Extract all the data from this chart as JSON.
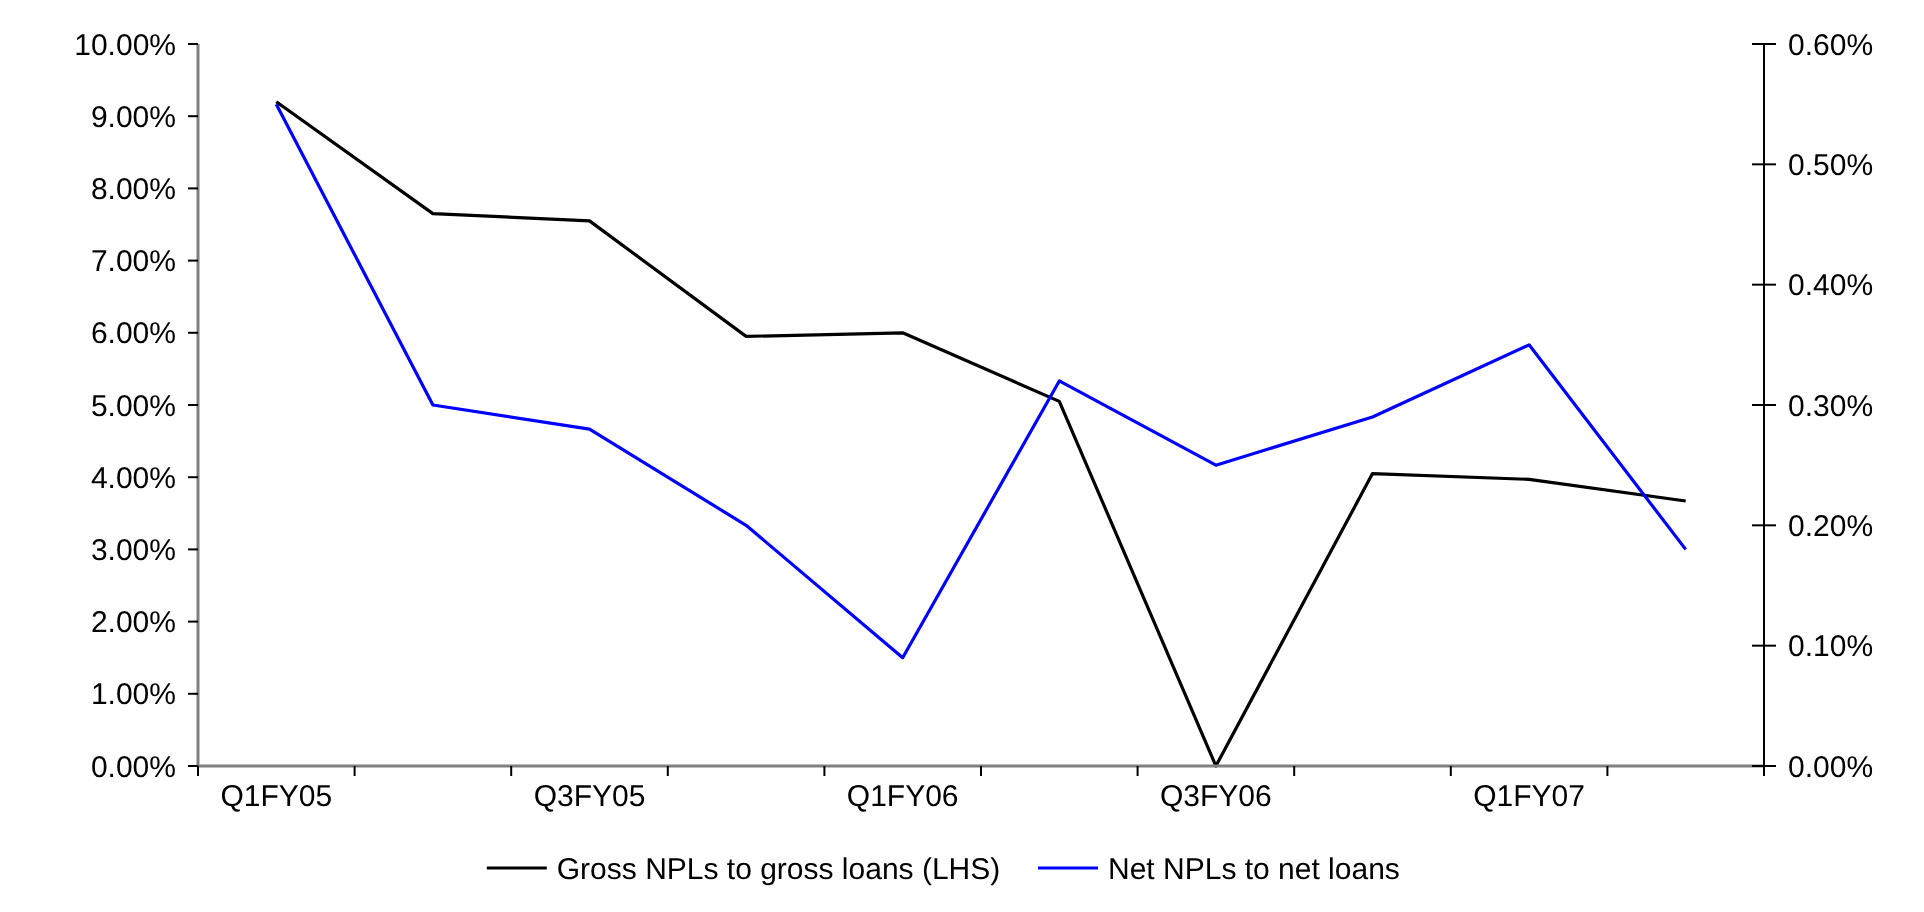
{
  "chart_data": {
    "type": "line",
    "categories": [
      "Q1FY05",
      null,
      "Q3FY05",
      null,
      "Q1FY06",
      null,
      "Q3FY06",
      null,
      "Q1FY07",
      null
    ],
    "series": [
      {
        "name": "Gross NPLs to gross loans (LHS)",
        "color": "#000000",
        "values": [
          9.2,
          7.65,
          7.55,
          5.95,
          6.0,
          5.05,
          0,
          4.05,
          3.97,
          3.67
        ]
      },
      {
        "name": "Net NPLs to net loans",
        "color": "#0000ff",
        "axis": "y2",
        "values": [
          0.55,
          0.3,
          0.28,
          0.2,
          0.09,
          0.32,
          0.25,
          0.29,
          0.35,
          0.18
        ]
      }
    ],
    "ylim": [
      0,
      10
    ],
    "yticks": [
      {
        "value": 0,
        "label": "0.00%"
      },
      {
        "value": 1,
        "label": "1.00%"
      },
      {
        "value": 2,
        "label": "2.00%"
      },
      {
        "value": 3,
        "label": "3.00%"
      },
      {
        "value": 4,
        "label": "4.00%"
      },
      {
        "value": 5,
        "label": "5.00%"
      },
      {
        "value": 6,
        "label": "6.00%"
      },
      {
        "value": 7,
        "label": "7.00%"
      },
      {
        "value": 8,
        "label": "8.00%"
      },
      {
        "value": 9,
        "label": "9.00%"
      },
      {
        "value": 10,
        "label": "10.00%"
      }
    ],
    "y2lim": [
      0,
      0.6
    ],
    "y2ticks": [
      {
        "value": 0,
        "label": "0.00%"
      },
      {
        "value": 0.1,
        "label": "0.10%"
      },
      {
        "value": 0.2,
        "label": "0.20%"
      },
      {
        "value": 0.3,
        "label": "0.30%"
      },
      {
        "value": 0.4,
        "label": "0.40%"
      },
      {
        "value": 0.5,
        "label": "0.50%"
      },
      {
        "value": 0.6,
        "label": "0.60%"
      }
    ],
    "legend": "bottom",
    "grid": false,
    "marker": "none",
    "line_style": "solid"
  }
}
